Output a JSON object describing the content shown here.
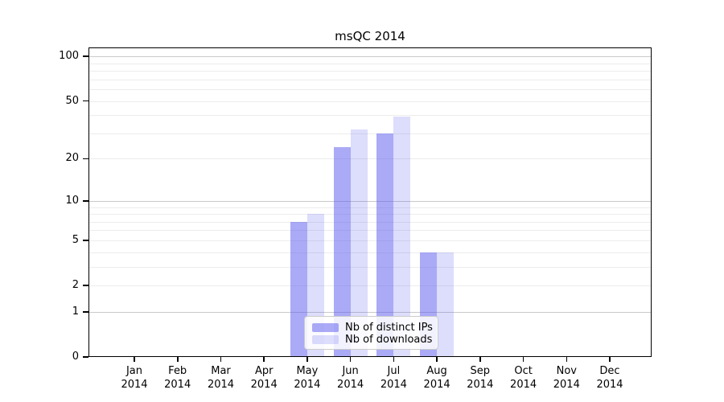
{
  "chart_data": {
    "type": "bar",
    "title": "msQC 2014",
    "categories": [
      [
        "Jan",
        "2014"
      ],
      [
        "Feb",
        "2014"
      ],
      [
        "Mar",
        "2014"
      ],
      [
        "Apr",
        "2014"
      ],
      [
        "May",
        "2014"
      ],
      [
        "Jun",
        "2014"
      ],
      [
        "Jul",
        "2014"
      ],
      [
        "Aug",
        "2014"
      ],
      [
        "Sep",
        "2014"
      ],
      [
        "Oct",
        "2014"
      ],
      [
        "Nov",
        "2014"
      ],
      [
        "Dec",
        "2014"
      ]
    ],
    "series": [
      {
        "name": "Nb of distinct IPs",
        "color": "rgba(85,85,238,0.5)",
        "values": [
          0,
          0,
          0,
          0,
          7,
          24,
          30,
          4,
          0,
          0,
          0,
          0
        ]
      },
      {
        "name": "Nb of downloads",
        "color": "rgba(85,85,238,0.2)",
        "values": [
          0,
          0,
          0,
          0,
          8,
          32,
          39,
          4,
          0,
          0,
          0,
          0
        ]
      }
    ],
    "yscale": "log1p",
    "ylim": [
      0,
      100
    ],
    "yticks": [
      0,
      1,
      2,
      5,
      10,
      20,
      50,
      100
    ],
    "grid": {
      "major": [
        1,
        10,
        100
      ],
      "minor": [
        2,
        3,
        4,
        5,
        6,
        7,
        8,
        9,
        20,
        30,
        40,
        50,
        60,
        70,
        80,
        90
      ]
    },
    "legend_position": "bottom-center",
    "xlabel": "",
    "ylabel": ""
  },
  "colors": {
    "axis": "#000000",
    "grid_major": "#c9c9c9",
    "grid_minor": "#ececec",
    "legend_border": "#cccccc"
  }
}
